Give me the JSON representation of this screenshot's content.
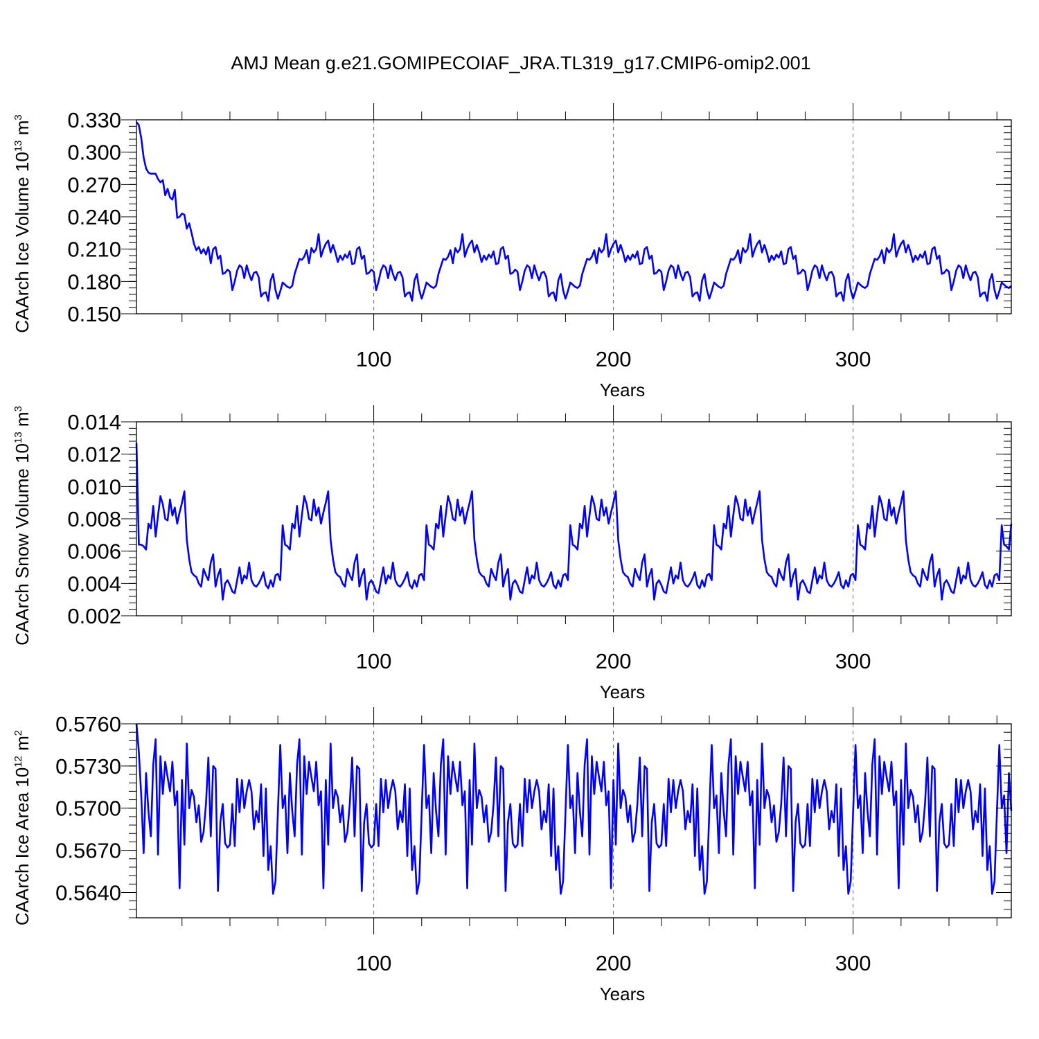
{
  "title": "AMJ Mean g.e21.GOMIPECOIAF_JRA.TL319_g17.CMIP6-omip2.001",
  "colors": {
    "line": "#0000ff",
    "axis": "#000000",
    "grid": "#666666"
  },
  "chart_data": [
    {
      "type": "line",
      "ylabel_main": "CAArch Ice Volume 10",
      "ylabel_exp": "13",
      "ylabel_unit": " m",
      "ylabel_unit_exp": "3",
      "xlabel": "Years",
      "xlim": [
        1,
        366
      ],
      "ylim": [
        0.15,
        0.33
      ],
      "yticks": [
        0.15,
        0.18,
        0.21,
        0.24,
        0.27,
        0.3,
        0.33
      ],
      "ytick_labels": [
        "0.150",
        "0.180",
        "0.210",
        "0.240",
        "0.270",
        "0.300",
        "0.330"
      ],
      "xticks": [
        100,
        200,
        300
      ],
      "xtick_labels": [
        "100",
        "200",
        "300"
      ],
      "grid": "dashed vertical at major x ticks",
      "initial": [
        0.328,
        0.325,
        0.313,
        0.295,
        0.285,
        0.281,
        0.28,
        0.28,
        0.28,
        0.275,
        0.272,
        0.274,
        0.26,
        0.266,
        0.258,
        0.256,
        0.265,
        0.239,
        0.24,
        0.243,
        0.242,
        0.229,
        0.234,
        0.225,
        0.215,
        0.209,
        0.212,
        0.206,
        0.21,
        0.205,
        0.212
      ],
      "cycle": [
        0.197,
        0.21,
        0.212,
        0.201,
        0.204,
        0.187,
        0.188,
        0.191,
        0.189,
        0.172,
        0.18,
        0.19,
        0.195,
        0.193,
        0.183,
        0.195,
        0.187,
        0.181,
        0.188,
        0.189,
        0.184,
        0.166,
        0.169,
        0.17,
        0.162,
        0.181,
        0.187,
        0.172,
        0.164,
        0.171,
        0.179,
        0.177,
        0.175,
        0.174,
        0.176,
        0.187,
        0.194,
        0.201,
        0.2,
        0.203,
        0.209,
        0.197,
        0.211,
        0.207,
        0.21,
        0.224,
        0.203,
        0.21,
        0.215,
        0.218,
        0.207,
        0.214,
        0.207,
        0.198,
        0.204,
        0.2,
        0.205,
        0.202,
        0.208,
        0.196
      ],
      "cycle_start": 32,
      "cycle_period": 60
    },
    {
      "type": "line",
      "ylabel_main": "CAArch Snow Volume 10",
      "ylabel_exp": "13",
      "ylabel_unit": " m",
      "ylabel_unit_exp": "3",
      "xlabel": "Years",
      "xlim": [
        1,
        366
      ],
      "ylim": [
        0.002,
        0.014
      ],
      "yticks": [
        0.002,
        0.004,
        0.006,
        0.008,
        0.01,
        0.012,
        0.014
      ],
      "ytick_labels": [
        "0.002",
        "0.004",
        "0.006",
        "0.008",
        "0.010",
        "0.012",
        "0.014"
      ],
      "xticks": [
        100,
        200,
        300
      ],
      "xtick_labels": [
        "100",
        "200",
        "300"
      ],
      "grid": "dashed vertical at major x ticks",
      "initial": [
        0.0127,
        0.0064
      ],
      "cycle": [
        0.0064,
        0.0063,
        0.0061,
        0.0077,
        0.0074,
        0.0088,
        0.0069,
        0.0082,
        0.0094,
        0.0089,
        0.008,
        0.0079,
        0.0092,
        0.0082,
        0.0087,
        0.0077,
        0.0084,
        0.009,
        0.0097,
        0.0067,
        0.0055,
        0.0047,
        0.0045,
        0.0044,
        0.004,
        0.0038,
        0.0049,
        0.0045,
        0.0042,
        0.0053,
        0.0058,
        0.0038,
        0.0045,
        0.0049,
        0.003,
        0.004,
        0.0042,
        0.0039,
        0.0035,
        0.0034,
        0.0042,
        0.005,
        0.004,
        0.0045,
        0.0043,
        0.0053,
        0.0042,
        0.0039,
        0.0038,
        0.004,
        0.0043,
        0.0047,
        0.0039,
        0.0037,
        0.0042,
        0.0038,
        0.0045,
        0.0046,
        0.0042,
        0.0076
      ],
      "cycle_start": 3,
      "cycle_period": 60
    },
    {
      "type": "line",
      "ylabel_main": "CAArch Ice Area 10",
      "ylabel_exp": "12",
      "ylabel_unit": " m",
      "ylabel_unit_exp": "2",
      "xlabel": "Years",
      "xlim": [
        1,
        366
      ],
      "ylim": [
        0.5622,
        0.576
      ],
      "yticks": [
        0.564,
        0.567,
        0.57,
        0.573,
        0.576
      ],
      "ytick_labels": [
        "0.5640",
        "0.5670",
        "0.5700",
        "0.5730",
        "0.5760"
      ],
      "xticks": [
        100,
        200,
        300
      ],
      "xtick_labels": [
        "100",
        "200",
        "300"
      ],
      "grid": "dashed vertical at major x ticks",
      "initial": [
        0.576,
        0.574
      ],
      "cycle": [
        0.5709,
        0.5668,
        0.5725,
        0.5698,
        0.568,
        0.5731,
        0.5749,
        0.5667,
        0.5737,
        0.571,
        0.5733,
        0.5722,
        0.5712,
        0.5733,
        0.5702,
        0.5712,
        0.5643,
        0.572,
        0.5674,
        0.5746,
        0.57,
        0.5713,
        0.5708,
        0.569,
        0.5702,
        0.5676,
        0.5683,
        0.5703,
        0.5736,
        0.568,
        0.573,
        0.5728,
        0.5641,
        0.569,
        0.5703,
        0.5675,
        0.5672,
        0.5674,
        0.5703,
        0.5673,
        0.5721,
        0.5697,
        0.572,
        0.57,
        0.5712,
        0.572,
        0.5712,
        0.5685,
        0.5698,
        0.569,
        0.5717,
        0.5666,
        0.5714,
        0.5656,
        0.5673,
        0.5639,
        0.5648,
        0.5697,
        0.5745,
        0.57
      ],
      "cycle_start": 3,
      "cycle_period": 60
    }
  ]
}
